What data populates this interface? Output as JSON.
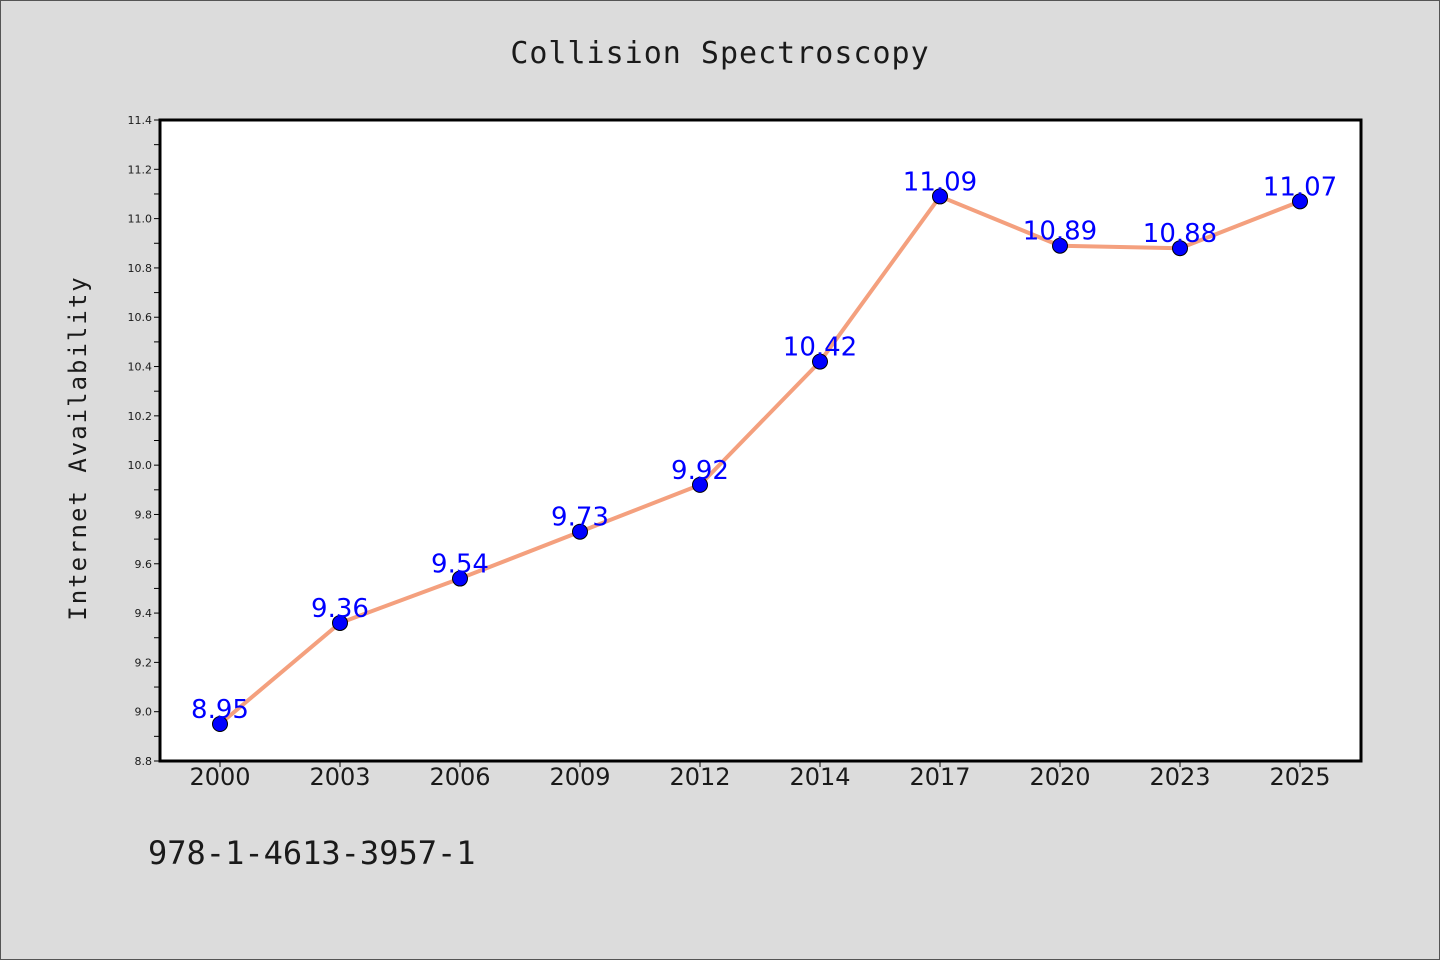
{
  "chart_data": {
    "type": "line",
    "title": "Collision Spectroscopy",
    "xlabel": "",
    "ylabel": "Internet Availability",
    "categories": [
      "2000",
      "2003",
      "2006",
      "2009",
      "2012",
      "2014",
      "2017",
      "2020",
      "2023",
      "2025"
    ],
    "series": [
      {
        "values": [
          8.95,
          9.36,
          9.54,
          9.73,
          9.92,
          10.42,
          11.09,
          10.89,
          10.88,
          11.07
        ],
        "data_labels": [
          "8.95",
          "9.36",
          "9.54",
          "9.73",
          "9.92",
          "10.42",
          "11.09",
          "10.89",
          "10.88",
          "11.07"
        ],
        "line_color": "#f4a07e",
        "marker_color": "#0000ff"
      }
    ],
    "ylim": [
      8.8,
      11.4
    ],
    "yticks": [
      "8.8",
      "9.0",
      "9.2",
      "9.4",
      "9.6",
      "9.8",
      "10.0",
      "10.2",
      "10.4",
      "10.6",
      "10.8",
      "11.0",
      "11.2",
      "11.4"
    ],
    "grid": false,
    "legend": "none"
  },
  "footer": {
    "isbn": "978-1-4613-3957-1"
  },
  "colors": {
    "background": "#dcdcdc",
    "plot_background": "#ffffff",
    "line": "#f4a07e",
    "marker": "#0000ff",
    "data_label": "#0000ff"
  }
}
